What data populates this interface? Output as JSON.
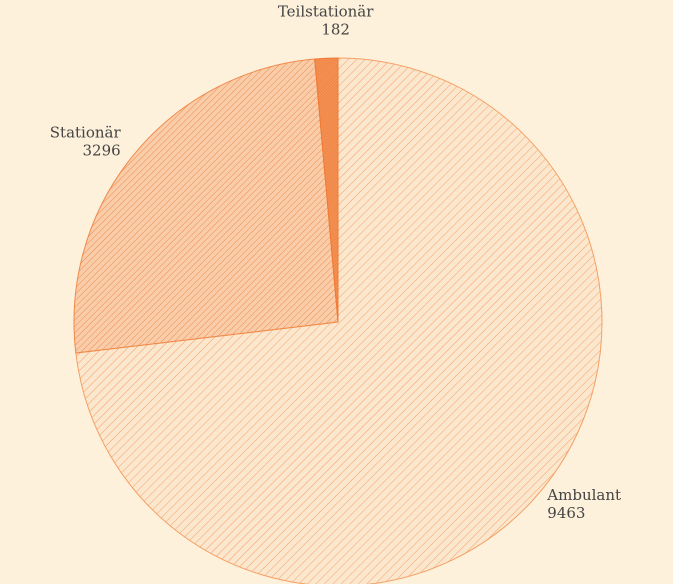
{
  "chart_data": {
    "type": "pie",
    "categories": [
      "Ambulant",
      "Stationär",
      "Teilstationär"
    ],
    "values": [
      9463,
      3296,
      182
    ],
    "colors": [
      "#f5a065",
      "#f08a4b",
      "#f07a35"
    ]
  }
}
